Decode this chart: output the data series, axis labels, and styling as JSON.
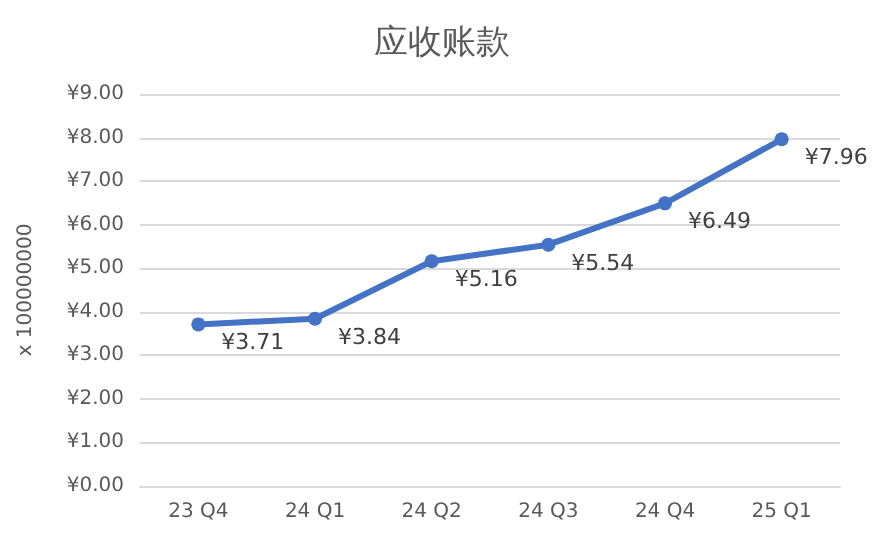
{
  "chart_data": {
    "type": "line",
    "title": "应收账款",
    "ylabel": "x 100000000",
    "categories": [
      "23 Q4",
      "24 Q1",
      "24 Q2",
      "24 Q3",
      "24 Q4",
      "25 Q1"
    ],
    "series": [
      {
        "color": "#4472c4",
        "values": [
          3.71,
          3.84,
          5.16,
          5.54,
          6.49,
          7.96
        ],
        "value_labels": [
          "¥3.71",
          "¥3.84",
          "¥5.16",
          "¥5.54",
          "¥6.49",
          "¥7.96"
        ]
      }
    ],
    "ylim": [
      0,
      9
    ],
    "yticks": [
      {
        "value": 0,
        "label": "¥0.00"
      },
      {
        "value": 1,
        "label": "¥1.00"
      },
      {
        "value": 2,
        "label": "¥2.00"
      },
      {
        "value": 3,
        "label": "¥3.00"
      },
      {
        "value": 4,
        "label": "¥4.00"
      },
      {
        "value": 5,
        "label": "¥5.00"
      },
      {
        "value": 6,
        "label": "¥6.00"
      },
      {
        "value": 7,
        "label": "¥7.00"
      },
      {
        "value": 8,
        "label": "¥8.00"
      },
      {
        "value": 9,
        "label": "¥9.00"
      }
    ],
    "grid": "y",
    "marker": "circle",
    "line_style": "solid"
  }
}
